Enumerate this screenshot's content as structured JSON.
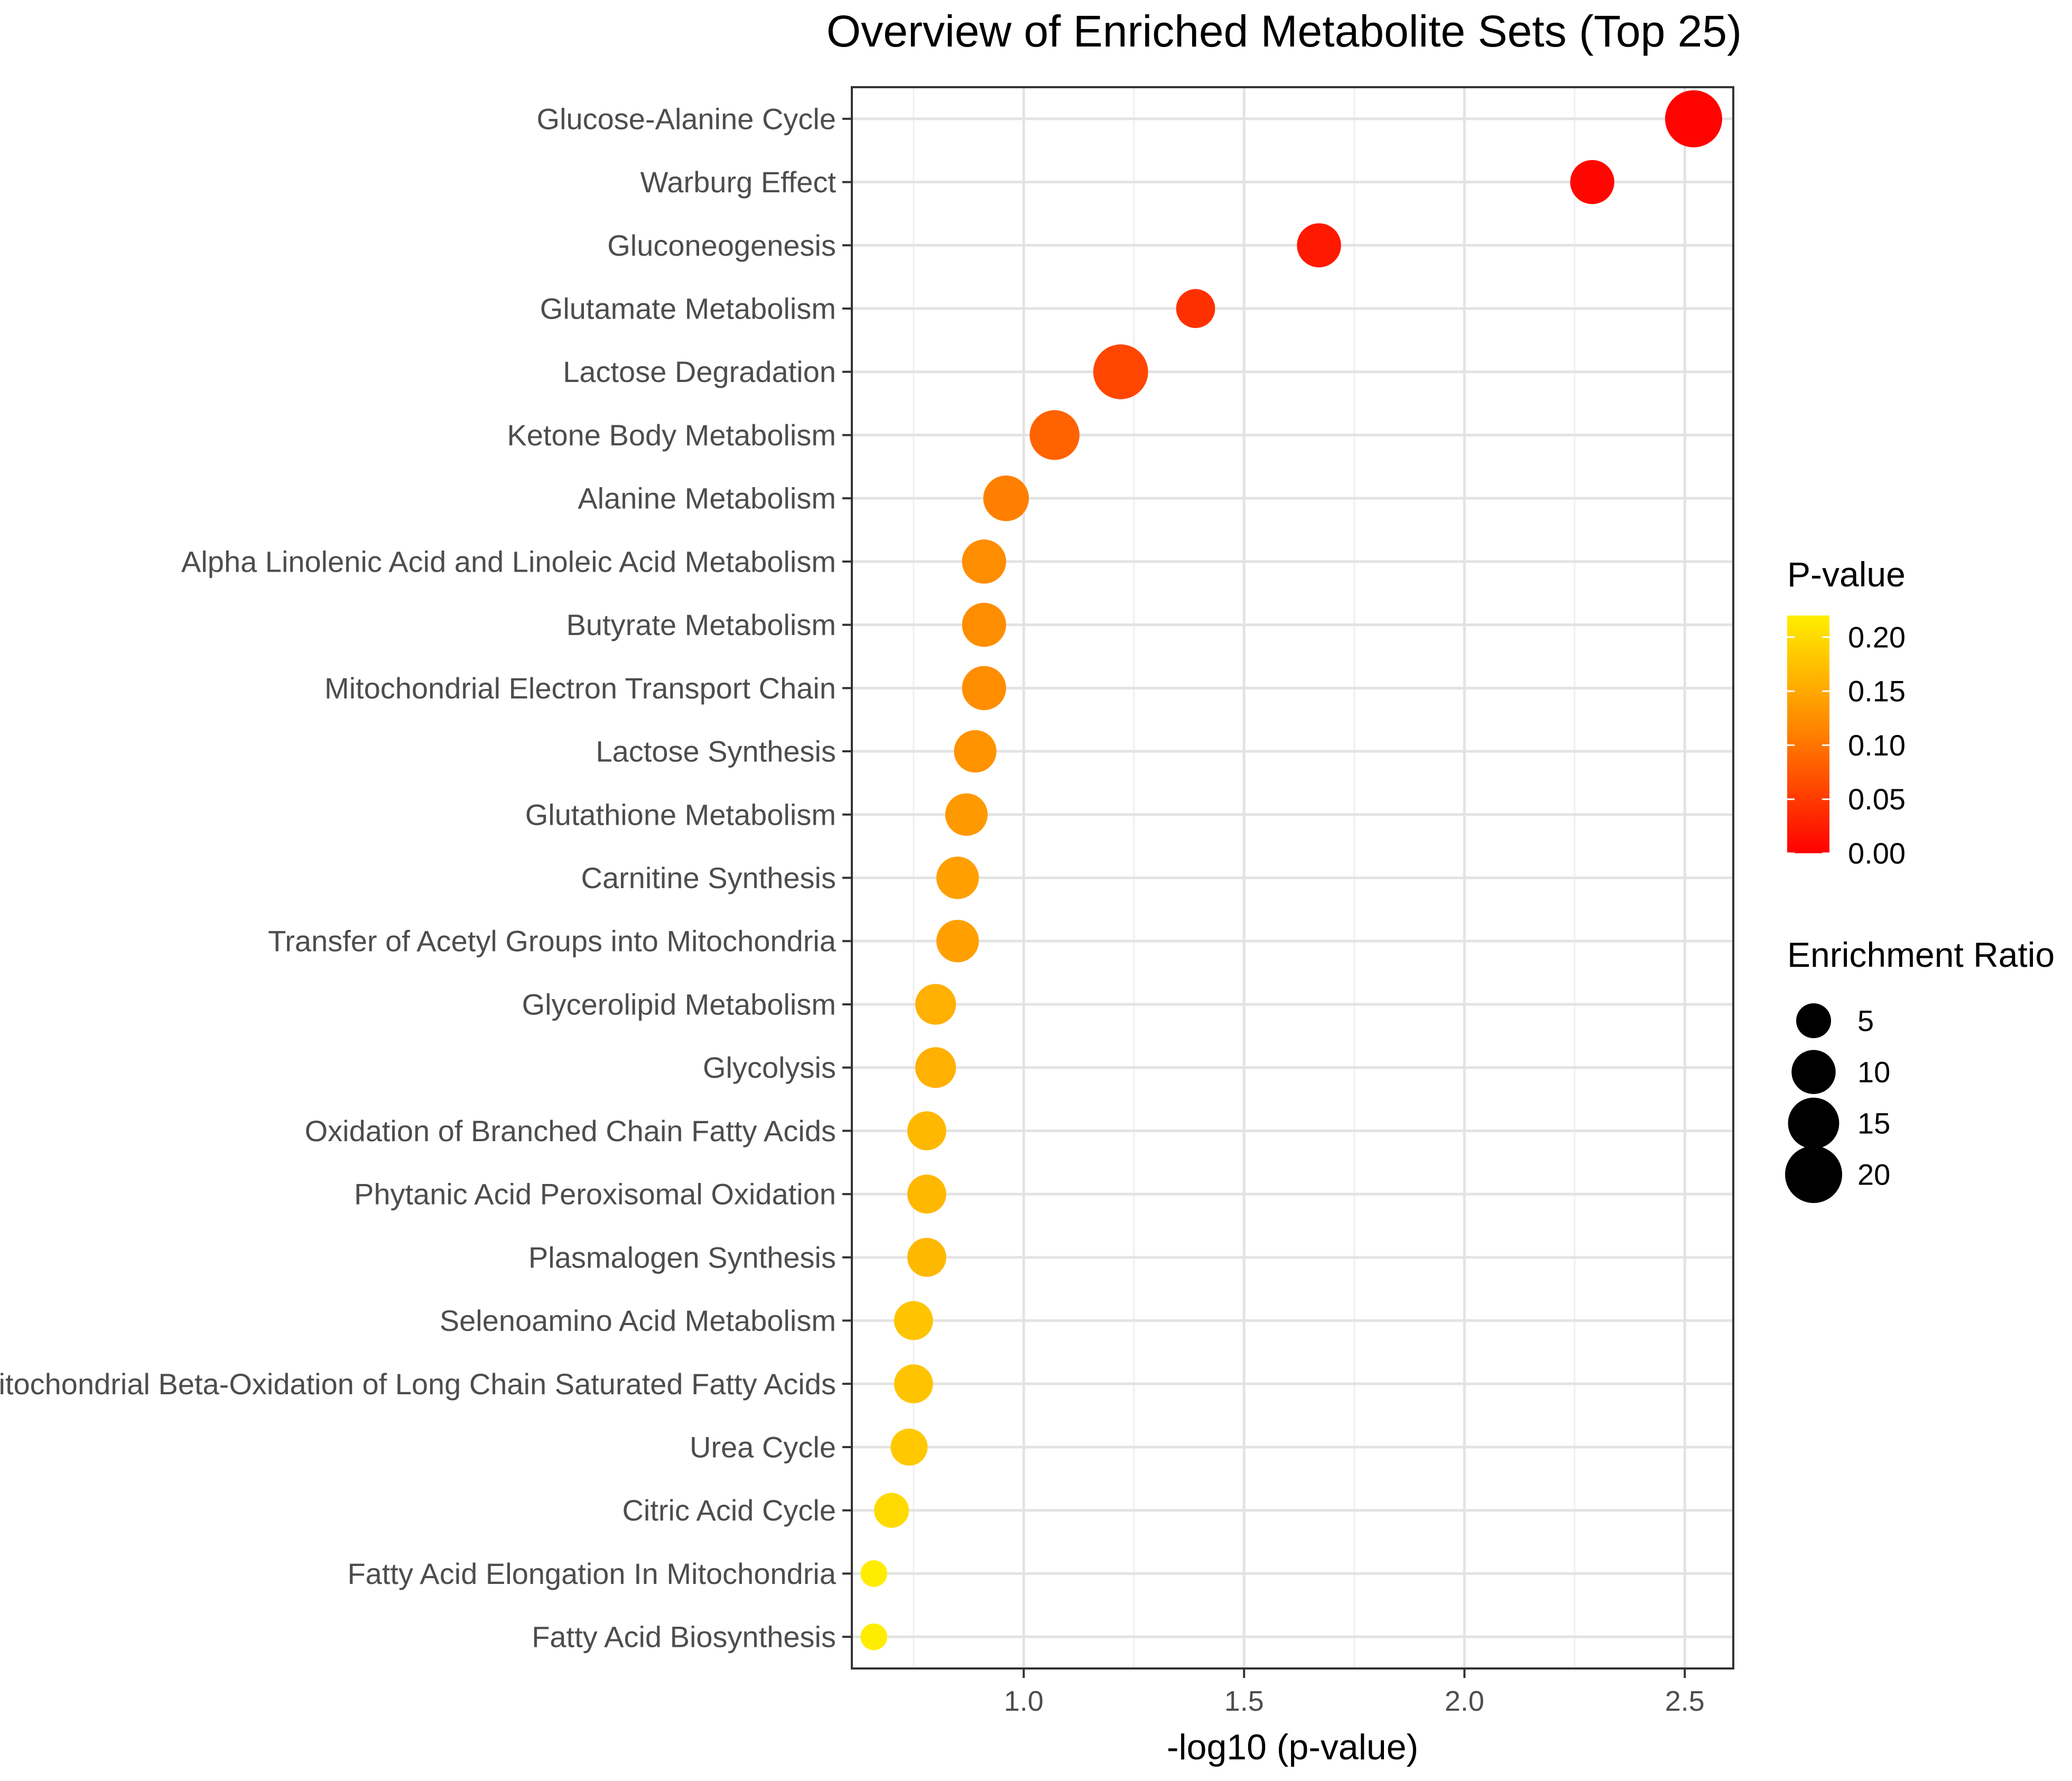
{
  "chart_data": {
    "type": "scatter",
    "title": "Overview of Enriched Metabolite Sets (Top 25)",
    "xlabel": "-log10 (p-value)",
    "ylabel": "",
    "xlim": [
      0.61,
      2.61
    ],
    "xticks": [
      {
        "value": 1.0,
        "label": "1.0"
      },
      {
        "value": 1.5,
        "label": "1.5"
      },
      {
        "value": 2.0,
        "label": "2.0"
      },
      {
        "value": 2.5,
        "label": "2.5"
      }
    ],
    "grid": true,
    "categories": [
      "Glucose-Alanine Cycle",
      "Warburg Effect",
      "Gluconeogenesis",
      "Glutamate Metabolism",
      "Lactose Degradation",
      "Ketone Body Metabolism",
      "Alanine Metabolism",
      "Alpha Linolenic Acid and Linoleic Acid Metabolism",
      "Butyrate Metabolism",
      "Mitochondrial Electron Transport Chain",
      "Lactose Synthesis",
      "Glutathione Metabolism",
      "Carnitine Synthesis",
      "Transfer of Acetyl Groups into Mitochondria",
      "Glycerolipid Metabolism",
      "Glycolysis",
      "Oxidation of Branched Chain Fatty Acids",
      "Phytanic Acid Peroxisomal Oxidation",
      "Plasmalogen Synthesis",
      "Selenoamino Acid Metabolism",
      "Mitochondrial Beta-Oxidation of Long Chain Saturated Fatty Acids",
      "Urea Cycle",
      "Citric Acid Cycle",
      "Fatty Acid Elongation In Mitochondria",
      "Fatty Acid Biosynthesis"
    ],
    "neg_log10_p": [
      2.52,
      2.29,
      1.67,
      1.39,
      1.22,
      1.07,
      0.96,
      0.91,
      0.91,
      0.91,
      0.89,
      0.87,
      0.85,
      0.85,
      0.8,
      0.8,
      0.78,
      0.78,
      0.78,
      0.75,
      0.75,
      0.74,
      0.7,
      0.66,
      0.66
    ],
    "p_value": [
      0.003,
      0.005,
      0.021,
      0.041,
      0.06,
      0.085,
      0.11,
      0.123,
      0.123,
      0.123,
      0.129,
      0.135,
      0.141,
      0.141,
      0.158,
      0.158,
      0.166,
      0.166,
      0.166,
      0.178,
      0.178,
      0.182,
      0.2,
      0.219,
      0.219
    ],
    "enrichment_ratio": [
      20,
      10,
      10,
      7,
      18,
      14,
      11,
      10,
      10,
      10,
      9,
      9,
      9,
      9,
      8,
      8,
      7,
      7,
      7,
      7,
      7,
      6,
      5,
      2,
      2
    ],
    "color_legend": {
      "title": "P-value",
      "range": [
        0.0,
        0.22
      ],
      "ticks": [
        "0.20",
        "0.15",
        "0.10",
        "0.05",
        "0.00"
      ],
      "low_color": "#ff0000",
      "mid_color": "#ff8000",
      "high_color": "#ffee00"
    },
    "size_legend": {
      "title": "Enrichment Ratio",
      "values": [
        5,
        10,
        15,
        20
      ],
      "labels": [
        "5",
        "10",
        "15",
        "20"
      ]
    },
    "legend_position": "right"
  }
}
